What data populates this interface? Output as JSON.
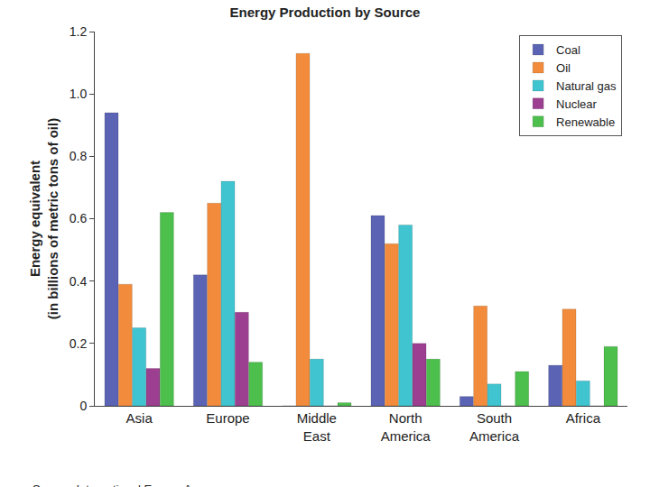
{
  "chart_data": {
    "type": "bar",
    "title": "Energy Production by Source",
    "y_label": "Energy equivalent\n(in billions of metric tons of oil)",
    "annotations": [
      {
        "text": "Source: International Energy Agency."
      }
    ],
    "categories": [
      "Asia",
      "Europe",
      "Middle East",
      "North America",
      "South America",
      "Africa"
    ],
    "series": [
      {
        "name": "Coal",
        "color": "#5b64b4",
        "values": [
          0.94,
          0.42,
          0,
          0.61,
          0.03,
          0.13
        ]
      },
      {
        "name": "Oil",
        "color": "#f28c3c",
        "values": [
          0.39,
          0.65,
          1.13,
          0.52,
          0.32,
          0.31
        ]
      },
      {
        "name": "Natural gas",
        "color": "#3fc4d0",
        "values": [
          0.25,
          0.72,
          0.15,
          0.58,
          0.07,
          0.08
        ]
      },
      {
        "name": "Nuclear",
        "color": "#9c3f90",
        "values": [
          0.12,
          0.3,
          0,
          0.2,
          0,
          0
        ]
      },
      {
        "name": "Renewable",
        "color": "#4cbf4c",
        "values": [
          0.62,
          0.14,
          0.01,
          0.15,
          0.11,
          0.19
        ]
      }
    ],
    "ylim": [
      0,
      1.2
    ],
    "yticks": [
      0,
      0.2,
      0.4,
      0.6,
      0.8,
      {
        "value": 1,
        "label": "1.0"
      },
      1.2
    ],
    "grid": false,
    "legend": "upper right"
  }
}
